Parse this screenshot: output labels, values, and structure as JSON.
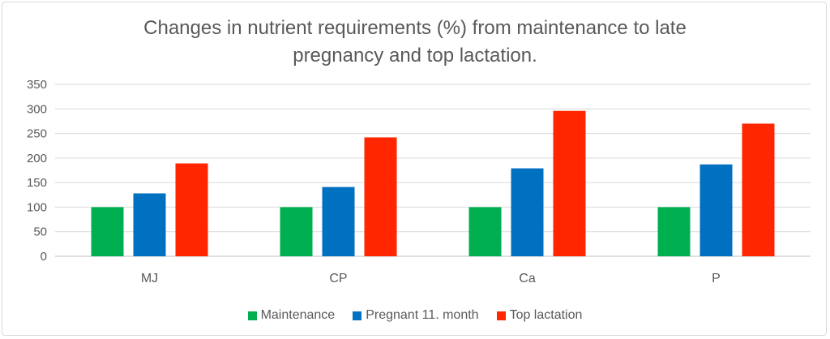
{
  "chart_data": {
    "type": "bar",
    "title_lines": [
      "Changes in nutrient requirements (%) from maintenance to late",
      "pregnancy and top lactation."
    ],
    "categories": [
      "MJ",
      "CP",
      "Ca",
      "P"
    ],
    "series": [
      {
        "name": "Maintenance",
        "values": [
          100,
          100,
          100,
          100
        ],
        "color": "#00b050"
      },
      {
        "name": "Pregnant 11. month",
        "values": [
          128,
          141,
          179,
          187
        ],
        "color": "#0070c0"
      },
      {
        "name": "Top lactation",
        "values": [
          189,
          242,
          296,
          270
        ],
        "color": "#ff2600"
      }
    ],
    "ylim": [
      0,
      350
    ],
    "yticks": [
      0,
      50,
      100,
      150,
      200,
      250,
      300,
      350
    ],
    "grid": true,
    "legend_position": "bottom"
  }
}
